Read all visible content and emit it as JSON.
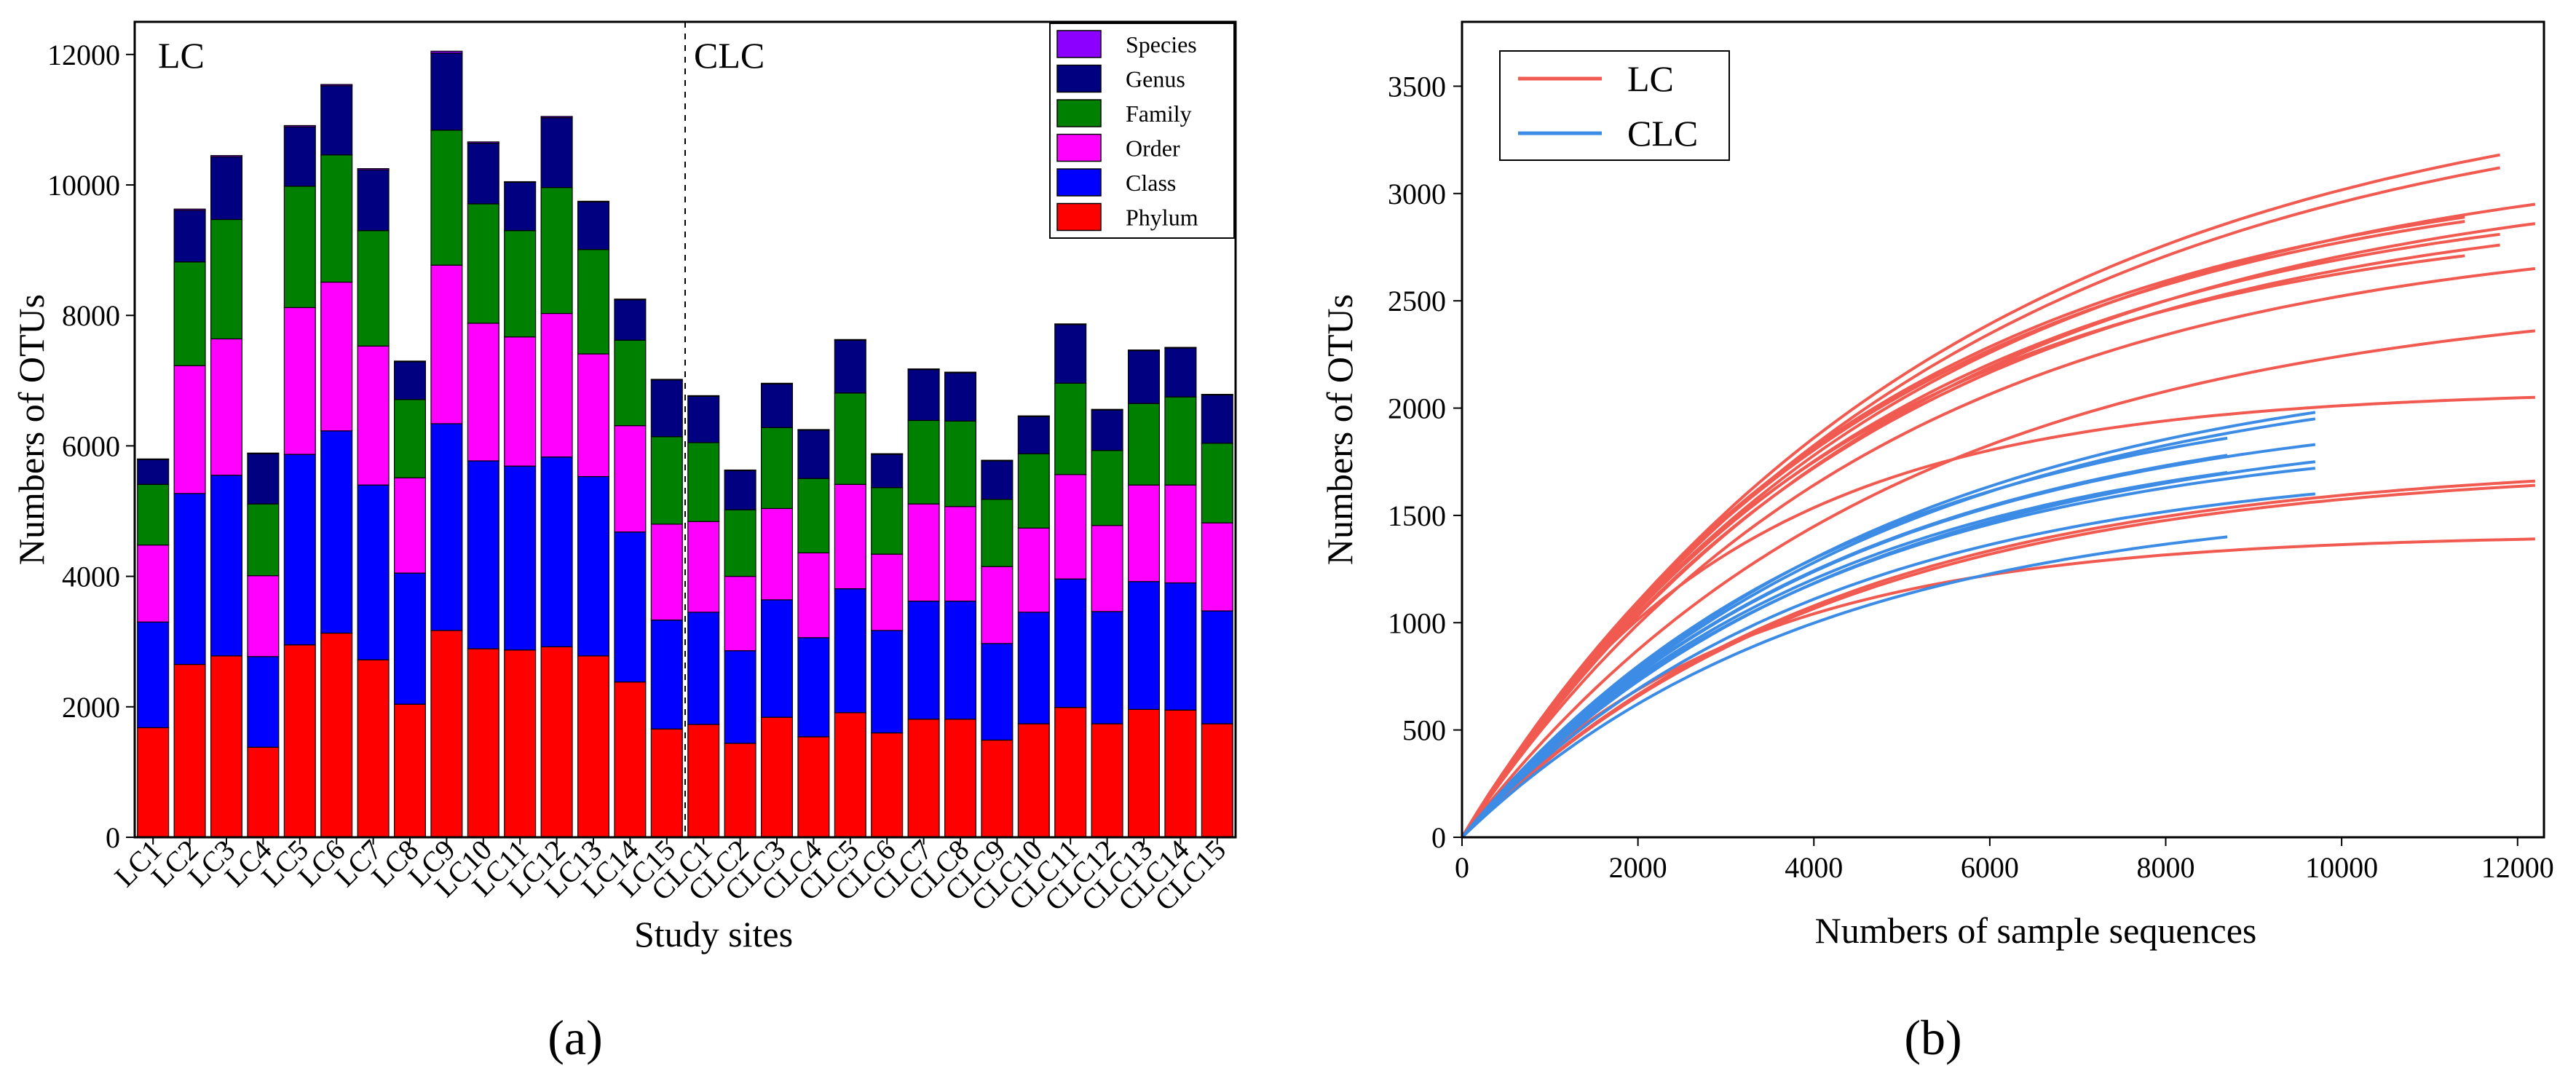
{
  "chart_data": [
    {
      "type": "bar",
      "stacked": true,
      "panel_label": "(a)",
      "xlabel": "Study sites",
      "ylabel": "Numbers of OTUs",
      "ylim": [
        0,
        12500
      ],
      "yticks": [
        0,
        2000,
        4000,
        6000,
        8000,
        10000,
        12000
      ],
      "group_labels": [
        "LC",
        "CLC"
      ],
      "categories": [
        "LC1",
        "LC2",
        "LC3",
        "LC4",
        "LC5",
        "LC6",
        "LC7",
        "LC8",
        "LC9",
        "LC10",
        "LC11",
        "LC12",
        "LC13",
        "LC14",
        "LC15",
        "CLC1",
        "CLC2",
        "CLC3",
        "CLC4",
        "CLC5",
        "CLC6",
        "CLC7",
        "CLC8",
        "CLC9",
        "CLC10",
        "CLC11",
        "CLC12",
        "CLC13",
        "CLC14",
        "CLC15"
      ],
      "series": [
        {
          "name": "Phylum",
          "color": "#ff0000",
          "values": [
            1680,
            2650,
            2780,
            1380,
            2950,
            3130,
            2720,
            2040,
            3170,
            2890,
            2870,
            2920,
            2780,
            2380,
            1660,
            1730,
            1440,
            1840,
            1540,
            1910,
            1600,
            1810,
            1810,
            1490,
            1740,
            1990,
            1740,
            1960,
            1950,
            1740
          ]
        },
        {
          "name": "Class",
          "color": "#0000ff",
          "values": [
            1620,
            2620,
            2770,
            1390,
            2920,
            3100,
            2680,
            2010,
            3170,
            2880,
            2820,
            2910,
            2750,
            2300,
            1670,
            1720,
            1420,
            1800,
            1520,
            1900,
            1570,
            1810,
            1810,
            1480,
            1710,
            1970,
            1720,
            1960,
            1950,
            1730
          ]
        },
        {
          "name": "Order",
          "color": "#ff00ff",
          "values": [
            1180,
            1960,
            2090,
            1240,
            2250,
            2280,
            2130,
            1460,
            2430,
            2110,
            1980,
            2200,
            1880,
            1630,
            1470,
            1390,
            1140,
            1400,
            1300,
            1600,
            1170,
            1490,
            1450,
            1180,
            1290,
            1600,
            1320,
            1480,
            1500,
            1350
          ]
        },
        {
          "name": "Family",
          "color": "#008000",
          "values": [
            930,
            1590,
            1830,
            1100,
            1860,
            1950,
            1770,
            1200,
            2070,
            1830,
            1630,
            1930,
            1600,
            1310,
            1340,
            1210,
            1020,
            1240,
            1140,
            1400,
            1020,
            1280,
            1310,
            1030,
            1140,
            1400,
            1150,
            1250,
            1350,
            1220
          ]
        },
        {
          "name": "Genus",
          "color": "#000080",
          "values": [
            380,
            790,
            960,
            770,
            910,
            1060,
            930,
            580,
            1180,
            930,
            740,
            1070,
            730,
            620,
            870,
            710,
            600,
            670,
            740,
            810,
            510,
            780,
            740,
            590,
            570,
            900,
            620,
            810,
            750,
            740
          ]
        },
        {
          "name": "Species",
          "color": "#8b00ff",
          "values": [
            10,
            20,
            20,
            10,
            20,
            20,
            20,
            10,
            30,
            20,
            10,
            20,
            10,
            10,
            10,
            10,
            10,
            10,
            10,
            10,
            10,
            10,
            10,
            10,
            10,
            10,
            10,
            10,
            10,
            10
          ]
        }
      ],
      "legend": [
        "Species",
        "Genus",
        "Family",
        "Order",
        "Class",
        "Phylum"
      ],
      "legend_position": "top-right"
    },
    {
      "type": "line",
      "panel_label": "(b)",
      "xlabel": "Numbers of sample sequences",
      "ylabel": "Numbers of OTUs",
      "xlim": [
        0,
        12300
      ],
      "ylim": [
        0,
        3800
      ],
      "xticks": [
        0,
        2000,
        4000,
        6000,
        8000,
        10000,
        12000
      ],
      "yticks": [
        0,
        500,
        1000,
        1500,
        2000,
        2500,
        3000,
        3500
      ],
      "legend_position": "top-left",
      "series": [
        {
          "name": "LC",
          "color": "#f05a50",
          "curves": [
            {
              "xmax": 11800,
              "ymax": 3180,
              "k": 5500
            },
            {
              "xmax": 11800,
              "ymax": 3120,
              "k": 5500
            },
            {
              "xmax": 12200,
              "ymax": 2950,
              "k": 5000
            },
            {
              "xmax": 11400,
              "ymax": 2890,
              "k": 4700
            },
            {
              "xmax": 11400,
              "ymax": 2870,
              "k": 4700
            },
            {
              "xmax": 12200,
              "ymax": 2860,
              "k": 5000
            },
            {
              "xmax": 11800,
              "ymax": 2810,
              "k": 4700
            },
            {
              "xmax": 11800,
              "ymax": 2760,
              "k": 4700
            },
            {
              "xmax": 11400,
              "ymax": 2710,
              "k": 4400
            },
            {
              "xmax": 12200,
              "ymax": 2650,
              "k": 4700
            },
            {
              "xmax": 12200,
              "ymax": 2360,
              "k": 4800
            },
            {
              "xmax": 12200,
              "ymax": 2050,
              "k": 3000
            },
            {
              "xmax": 12200,
              "ymax": 1660,
              "k": 4200
            },
            {
              "xmax": 12200,
              "ymax": 1640,
              "k": 4200
            },
            {
              "xmax": 12200,
              "ymax": 1390,
              "k": 3000
            }
          ]
        },
        {
          "name": "CLC",
          "color": "#3c8ce6",
          "curves": [
            {
              "xmax": 9700,
              "ymax": 1980,
              "k": 4700
            },
            {
              "xmax": 9700,
              "ymax": 1950,
              "k": 4700
            },
            {
              "xmax": 8700,
              "ymax": 1860,
              "k": 4300
            },
            {
              "xmax": 9700,
              "ymax": 1830,
              "k": 4300
            },
            {
              "xmax": 8700,
              "ymax": 1780,
              "k": 4300
            },
            {
              "xmax": 9700,
              "ymax": 1750,
              "k": 4300
            },
            {
              "xmax": 9700,
              "ymax": 1720,
              "k": 4100
            },
            {
              "xmax": 8700,
              "ymax": 1700,
              "k": 4100
            },
            {
              "xmax": 9700,
              "ymax": 1600,
              "k": 4000
            },
            {
              "xmax": 8700,
              "ymax": 1400,
              "k": 4000
            }
          ]
        }
      ]
    }
  ]
}
